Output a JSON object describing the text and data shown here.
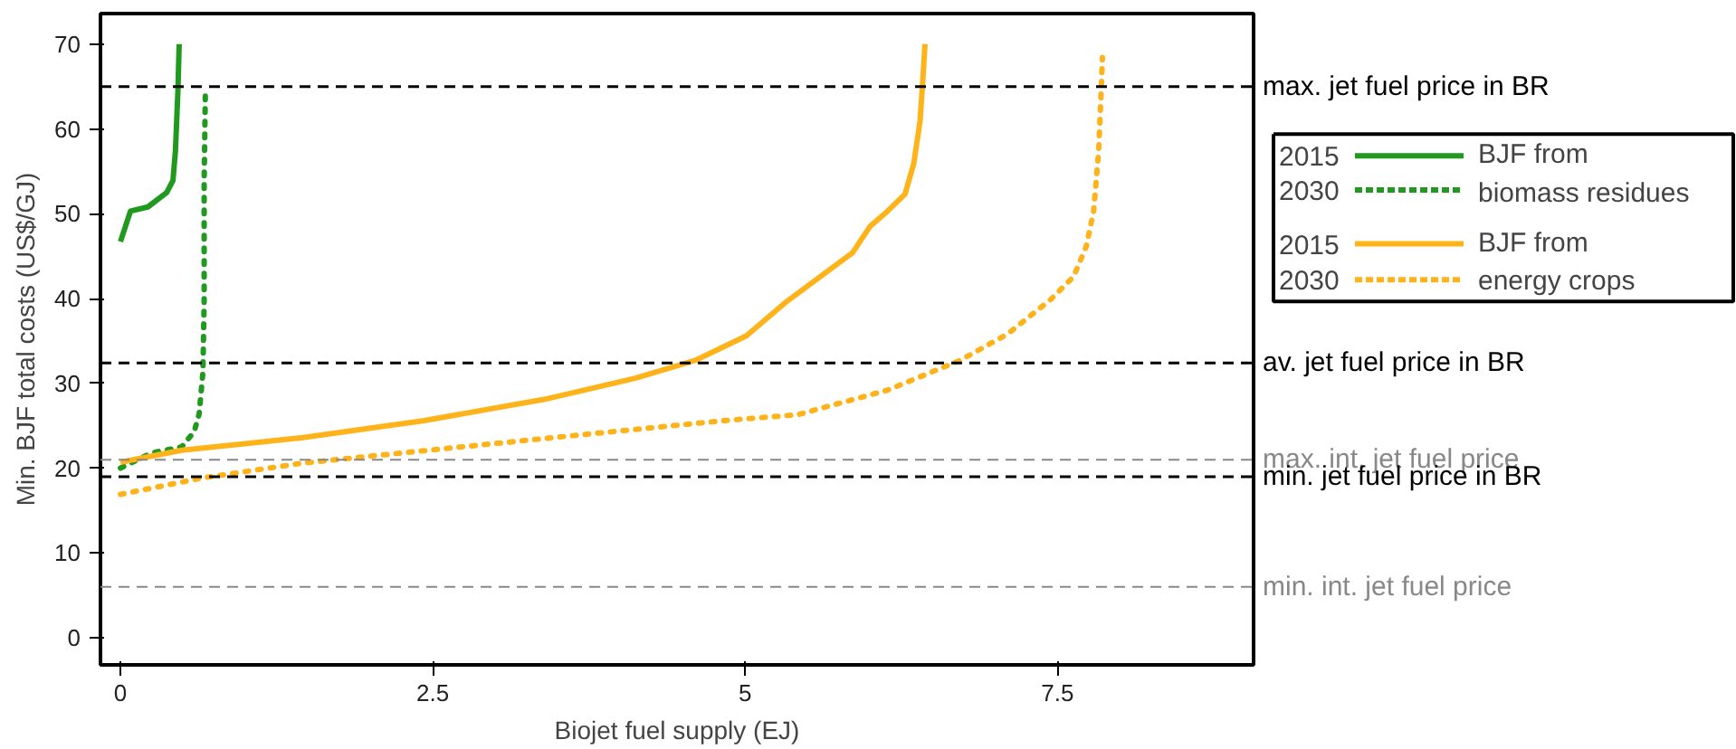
{
  "chart_data": {
    "type": "line",
    "xlabel": "Biojet fuel supply (EJ)",
    "ylabel": "Min. BJF total costs (US$/GJ)",
    "xlim": [
      -0.16,
      9.07
    ],
    "ylim": [
      -3.2,
      73.6
    ],
    "xticks": [
      0,
      2.5,
      5,
      7.5
    ],
    "yticks": [
      0,
      10,
      20,
      30,
      40,
      50,
      60,
      70
    ],
    "grid": false,
    "legend": "right",
    "series": [
      {
        "name": "2015",
        "color": "#1f9a1f",
        "line_style": "solid",
        "x": [
          0,
          0.08,
          0.22,
          0.37,
          0.42,
          0.44,
          0.46,
          0.47
        ],
        "values": [
          46.7,
          50.3,
          50.8,
          52.5,
          53.9,
          57.4,
          64.5,
          70
        ]
      },
      {
        "name": "2030",
        "color": "#1f9a1f",
        "line_style": "dotted",
        "x": [
          0,
          0.25,
          0.49,
          0.59,
          0.63,
          0.66,
          0.67,
          0.67,
          0.68
        ],
        "values": [
          20,
          21.8,
          22.5,
          24.3,
          26.4,
          31.3,
          39.8,
          53.9,
          64.8
        ]
      },
      {
        "name": "2015",
        "color": "#ffb31a",
        "line_style": "solid",
        "x": [
          0,
          0.49,
          1.46,
          2.43,
          3.39,
          4.12,
          4.6,
          5.01,
          5.32,
          5.86,
          6.0,
          6.14,
          6.28,
          6.35,
          6.4,
          6.42,
          6.44
        ],
        "values": [
          20.7,
          22.1,
          23.6,
          25.6,
          28.1,
          30.6,
          32.7,
          35.6,
          39.5,
          45.4,
          48.5,
          50.3,
          52.3,
          55.9,
          60.9,
          65.2,
          70
        ]
      },
      {
        "name": "2030",
        "color": "#ffb31a",
        "line_style": "dotted",
        "x": [
          0,
          0.64,
          1.46,
          2.66,
          3.87,
          4.83,
          5.42,
          6.14,
          6.72,
          7.1,
          7.44,
          7.63,
          7.73,
          7.79,
          7.83,
          7.85,
          7.86
        ],
        "values": [
          16.9,
          18.8,
          20.6,
          22.4,
          24.2,
          25.6,
          26.3,
          29.2,
          32.7,
          35.8,
          39.8,
          42.6,
          46.1,
          50.3,
          57.4,
          64.5,
          68.4
        ]
      }
    ],
    "ref_lines": [
      {
        "axis": "y",
        "value": 65,
        "label": "max. jet fuel price in BR",
        "color": "#000000",
        "line_style": "dashed"
      },
      {
        "axis": "y",
        "value": 32.4,
        "label": "av. jet fuel price in BR",
        "color": "#000000",
        "line_style": "dashed"
      },
      {
        "axis": "y",
        "value": 21,
        "label": "max. int. jet fuel price",
        "color": "#888888",
        "line_style": "dashed"
      },
      {
        "axis": "y",
        "value": 19,
        "label": "min. jet fuel price in BR",
        "color": "#000000",
        "line_style": "dashed"
      },
      {
        "axis": "y",
        "value": 6,
        "label": "min. int. jet fuel price",
        "color": "#888888",
        "line_style": "dashed"
      }
    ],
    "annotations": [
      "BJF from\nbiomass residues",
      "BJF from\nenergy crops"
    ]
  }
}
